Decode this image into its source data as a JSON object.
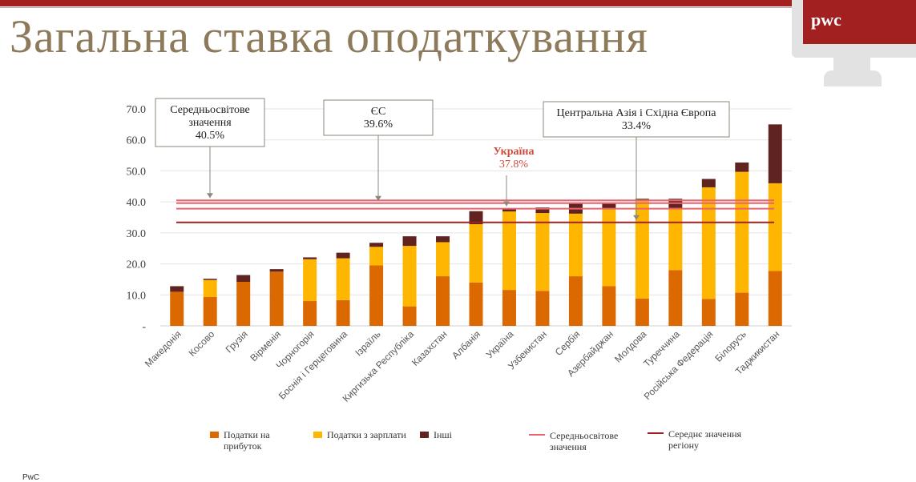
{
  "page": {
    "title": "Загальна ставка оподаткування",
    "footer": "PwC"
  },
  "brand": {
    "logo_text": "pwc",
    "color": "#a32020"
  },
  "chart_data": {
    "type": "bar",
    "stacked": true,
    "title": "",
    "xlabel": "",
    "ylabel": "",
    "ylim": [
      0,
      70
    ],
    "yticks": [
      "-",
      "10.0",
      "20.0",
      "30.0",
      "40.0",
      "50.0",
      "60.0",
      "70.0"
    ],
    "grid": true,
    "categories": [
      "Македонія",
      "Косово",
      "Грузія",
      "Вірменія",
      "Чорногорія",
      "Боснія і Герцеговина",
      "Ізраїль",
      "Киргизька Республіка",
      "Казахстан",
      "Албанія",
      "Україна",
      "Узбекистан",
      "Сербія",
      "Азербайджан",
      "Молдова",
      "Туреччина",
      "Російська Федерація",
      "Білорусь",
      "Таджикистан"
    ],
    "series": [
      {
        "name": "Податки на прибуток",
        "color": "#dc6900",
        "values": [
          11.0,
          9.3,
          14.2,
          17.5,
          8.0,
          8.3,
          19.5,
          6.3,
          16.0,
          14.0,
          11.6,
          11.3,
          16.0,
          12.8,
          8.8,
          18.0,
          8.7,
          10.7,
          17.7
        ]
      },
      {
        "name": "Податки з зарплати",
        "color": "#ffb600",
        "values": [
          0.0,
          5.5,
          0.0,
          0.0,
          13.5,
          13.5,
          6.0,
          19.5,
          11.0,
          18.8,
          25.3,
          25.1,
          20.2,
          25.0,
          31.6,
          20.0,
          36.0,
          39.0,
          28.3
        ]
      },
      {
        "name": "Інші",
        "color": "#602320",
        "values": [
          1.8,
          0.4,
          2.2,
          0.8,
          0.6,
          1.8,
          1.3,
          3.1,
          1.9,
          4.2,
          0.9,
          1.8,
          3.2,
          1.8,
          0.6,
          3.0,
          2.7,
          3.0,
          19.0
        ]
      }
    ],
    "reference_lines": [
      {
        "name": "Середньосвітове значення",
        "value": 40.5,
        "color": "#e8646e"
      },
      {
        "name": "ЄС",
        "value": 39.6,
        "color": "#e8646e"
      },
      {
        "name": "Україна",
        "value": 37.8,
        "color": "#e8646e"
      },
      {
        "name": "Середнє значення регіону",
        "value": 33.4,
        "color": "#a32020"
      }
    ],
    "callouts": [
      {
        "line1": "Середньосвітове",
        "line2": "значення",
        "line3": "40.5%",
        "value": 40.5,
        "highlight": false
      },
      {
        "line1": "ЄС",
        "line2": "39.6%",
        "value": 39.6,
        "highlight": false
      },
      {
        "line1": "Україна",
        "line2": "37.8%",
        "value": 37.8,
        "highlight": true
      },
      {
        "line1": "Центральна Азія і Східна Європа",
        "line2": "33.4%",
        "value": 33.4,
        "highlight": false
      }
    ],
    "legend": {
      "position": "bottom",
      "items": [
        {
          "kind": "box",
          "color": "#dc6900",
          "line1": "Податки на",
          "line2": "прибуток"
        },
        {
          "kind": "box",
          "color": "#ffb600",
          "line1": "Податки з зарплати",
          "line2": ""
        },
        {
          "kind": "box",
          "color": "#602320",
          "line1": "Інші",
          "line2": ""
        },
        {
          "kind": "line",
          "color": "#e8646e",
          "line1": "Середньосвітове",
          "line2": "значення"
        },
        {
          "kind": "line",
          "color": "#a32020",
          "line1": "Середнє значення",
          "line2": "регіону"
        }
      ]
    }
  }
}
